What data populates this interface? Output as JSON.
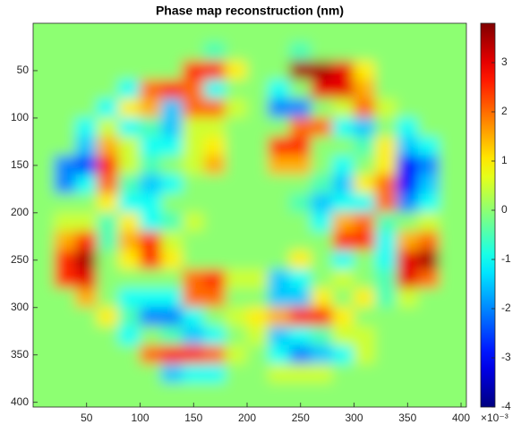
{
  "chart_data": {
    "type": "heatmap",
    "title": "Phase map reconstruction (nm)",
    "x": [
      10,
      30,
      50,
      70,
      90,
      110,
      130,
      150,
      170,
      190,
      210,
      230,
      250,
      270,
      290,
      310,
      330,
      350,
      370,
      390
    ],
    "y": [
      10,
      30,
      50,
      70,
      90,
      110,
      130,
      150,
      170,
      190,
      210,
      230,
      250,
      270,
      290,
      310,
      330,
      350,
      370,
      390
    ],
    "z": [
      [
        0,
        0,
        0,
        0,
        0,
        0,
        0,
        0,
        0,
        0,
        0,
        0,
        0,
        0,
        0,
        0,
        0,
        0,
        0,
        0
      ],
      [
        0,
        0,
        0,
        0,
        0,
        0,
        0,
        0,
        -0.5,
        0,
        0,
        0,
        -0.5,
        0,
        0,
        0,
        0,
        0,
        0,
        0
      ],
      [
        0,
        0,
        0,
        0,
        0,
        0,
        0,
        2.5,
        2.5,
        1,
        0,
        0,
        3.5,
        3.5,
        3,
        1,
        0,
        0,
        0,
        0
      ],
      [
        0,
        0,
        0,
        0,
        -1,
        2,
        2.5,
        2,
        -1,
        0,
        0,
        -1,
        0,
        3,
        3,
        1.5,
        0,
        0,
        0,
        0
      ],
      [
        0,
        0,
        0,
        -1,
        1,
        1.5,
        -1.5,
        2,
        2,
        0.5,
        0,
        -2,
        -2,
        0,
        0.5,
        2,
        0.5,
        0,
        0,
        0
      ],
      [
        0,
        0,
        -1,
        0.5,
        -1,
        -0.5,
        -1.5,
        0.5,
        0.5,
        0,
        0,
        0,
        2,
        2,
        -1,
        -1.5,
        0,
        -1,
        0,
        0
      ],
      [
        0,
        0,
        -1.5,
        1.5,
        0.5,
        -1,
        -1,
        0.5,
        1,
        0,
        0,
        2.5,
        2.5,
        0,
        0,
        -0.5,
        1,
        -1.5,
        -1,
        0
      ],
      [
        0,
        -2,
        -2.5,
        2.5,
        0.5,
        -0.5,
        0,
        0.5,
        1.5,
        0,
        0,
        1.5,
        1.5,
        0,
        -1,
        0,
        1,
        -3,
        -2,
        0
      ],
      [
        0,
        -2,
        -1,
        2,
        -0.5,
        -1.5,
        -1,
        0,
        0,
        0,
        0,
        0,
        0,
        -0.5,
        -1.5,
        1,
        2,
        -3,
        -1.5,
        0
      ],
      [
        0,
        0,
        0,
        1,
        -1,
        -1,
        0,
        0,
        0,
        0,
        0,
        0,
        -0.5,
        -1.5,
        -1,
        -1,
        2,
        -2,
        -1,
        0
      ],
      [
        0,
        0.5,
        0.5,
        -0.5,
        1,
        -1,
        -0.5,
        0.5,
        0,
        0,
        0,
        0,
        0,
        -1,
        1.5,
        2,
        -0.5,
        0,
        0.5,
        0
      ],
      [
        0,
        1.5,
        2.5,
        -0.5,
        1.5,
        2.5,
        0.5,
        0,
        0,
        0,
        0,
        0,
        0,
        0,
        2.5,
        2.5,
        -1,
        1.5,
        2,
        0
      ],
      [
        0,
        2.5,
        3.5,
        0,
        1,
        2.5,
        1,
        0,
        0,
        0,
        0,
        0,
        1,
        0,
        -1,
        0,
        -1,
        3,
        3.5,
        0
      ],
      [
        0,
        2.5,
        3,
        0,
        0,
        0,
        0,
        2,
        2.5,
        0.5,
        0.5,
        -1.5,
        -1,
        0,
        0.5,
        0,
        -0.5,
        3,
        2,
        0
      ],
      [
        0,
        0,
        1.5,
        0,
        -1,
        -1,
        -1,
        2,
        2,
        0,
        0,
        -1.5,
        -1.5,
        1,
        0,
        1,
        -0.5,
        0.5,
        0,
        0
      ],
      [
        0,
        0,
        0,
        1,
        -0.5,
        -2,
        -2,
        -1,
        0,
        0.5,
        1,
        1.5,
        2.5,
        2.5,
        1,
        0,
        0,
        0,
        0,
        0
      ],
      [
        0,
        0,
        0,
        0,
        -1,
        0,
        -0.5,
        -1.5,
        -1,
        0,
        0.5,
        -1.5,
        -1,
        -0.5,
        0.5,
        0.5,
        0,
        0,
        0,
        0
      ],
      [
        0,
        0,
        0,
        0,
        0,
        2,
        2.5,
        2.5,
        2,
        0.5,
        0,
        -1,
        -2,
        -1.5,
        -1,
        0.5,
        0,
        0,
        0,
        0
      ],
      [
        0,
        0,
        0,
        0,
        0,
        0,
        -1.5,
        -1,
        -1,
        0,
        0,
        0.5,
        0.5,
        0.5,
        0,
        0,
        0,
        0,
        0,
        0
      ],
      [
        0,
        0,
        0,
        0,
        0,
        0,
        0,
        0,
        0,
        0,
        0,
        0,
        0,
        0,
        0,
        0,
        0,
        0,
        0,
        0
      ]
    ],
    "xlim": [
      0,
      405
    ],
    "ylim": [
      0,
      405
    ],
    "y_reversed": true,
    "xticks": [
      50,
      100,
      150,
      200,
      250,
      300,
      350,
      400
    ],
    "yticks": [
      50,
      100,
      150,
      200,
      250,
      300,
      350,
      400
    ],
    "clim": [
      -4,
      3.8
    ],
    "cticks": [
      -4,
      -3,
      -2,
      -1,
      0,
      1,
      2,
      3
    ],
    "colorbar_exponent": "×10⁻³",
    "colormap": "jet"
  }
}
